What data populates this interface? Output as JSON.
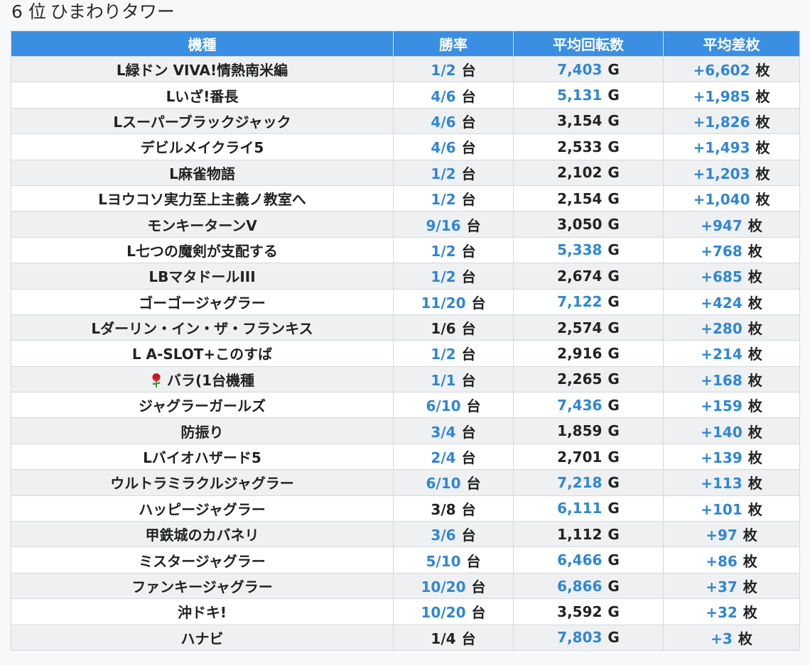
{
  "title": {
    "rank": "6 位",
    "store": "ひまわりタワー"
  },
  "columns": [
    "機種",
    "勝率",
    "平均回転数",
    "平均差枚"
  ],
  "units": {
    "win": "台",
    "spin": "G",
    "diff": "枚"
  },
  "colors": {
    "header": "#3b8fe2",
    "link": "#2f86d6",
    "text": "#222222",
    "stripe": "#eff0f1"
  },
  "rows": [
    {
      "name": "L緑ドン VIVA!情熱南米編",
      "win": "1/2",
      "win_link": true,
      "spin": "7,403",
      "spin_link": true,
      "diff": "+6,602",
      "diff_link": true
    },
    {
      "name": "Lいざ!番長",
      "win": "4/6",
      "win_link": true,
      "spin": "5,131",
      "spin_link": true,
      "diff": "+1,985",
      "diff_link": true
    },
    {
      "name": "Lスーパーブラックジャック",
      "win": "4/6",
      "win_link": true,
      "spin": "3,154",
      "spin_link": false,
      "diff": "+1,826",
      "diff_link": true
    },
    {
      "name": "デビルメイクライ5",
      "win": "4/6",
      "win_link": true,
      "spin": "2,533",
      "spin_link": false,
      "diff": "+1,493",
      "diff_link": true
    },
    {
      "name": "L麻雀物語",
      "win": "1/2",
      "win_link": true,
      "spin": "2,102",
      "spin_link": false,
      "diff": "+1,203",
      "diff_link": true
    },
    {
      "name": "Lヨウコソ実力至上主義ノ教室へ",
      "win": "1/2",
      "win_link": true,
      "spin": "2,154",
      "spin_link": false,
      "diff": "+1,040",
      "diff_link": true
    },
    {
      "name": "モンキーターンV",
      "win": "9/16",
      "win_link": true,
      "spin": "3,050",
      "spin_link": false,
      "diff": "+947",
      "diff_link": true
    },
    {
      "name": "L七つの魔剣が支配する",
      "win": "1/2",
      "win_link": true,
      "spin": "5,338",
      "spin_link": true,
      "diff": "+768",
      "diff_link": true
    },
    {
      "name": "LBマタドールIII",
      "win": "1/2",
      "win_link": true,
      "spin": "2,674",
      "spin_link": false,
      "diff": "+685",
      "diff_link": true
    },
    {
      "name": "ゴーゴージャグラー",
      "win": "11/20",
      "win_link": true,
      "spin": "7,122",
      "spin_link": true,
      "diff": "+424",
      "diff_link": true
    },
    {
      "name": "Lダーリン・イン・ザ・フランキス",
      "win": "1/6",
      "win_link": false,
      "spin": "2,574",
      "spin_link": false,
      "diff": "+280",
      "diff_link": true
    },
    {
      "name": "L A-SLOT+このすば",
      "win": "1/2",
      "win_link": true,
      "spin": "2,916",
      "spin_link": false,
      "diff": "+214",
      "diff_link": true
    },
    {
      "name": "バラ(1台機種",
      "icon": "rose-icon",
      "win": "1/1",
      "win_link": true,
      "spin": "2,265",
      "spin_link": false,
      "diff": "+168",
      "diff_link": true
    },
    {
      "name": "ジャグラーガールズ",
      "win": "6/10",
      "win_link": true,
      "spin": "7,436",
      "spin_link": true,
      "diff": "+159",
      "diff_link": true
    },
    {
      "name": "防振り",
      "win": "3/4",
      "win_link": true,
      "spin": "1,859",
      "spin_link": false,
      "diff": "+140",
      "diff_link": true
    },
    {
      "name": "Lバイオハザード5",
      "win": "2/4",
      "win_link": true,
      "spin": "2,701",
      "spin_link": false,
      "diff": "+139",
      "diff_link": true
    },
    {
      "name": "ウルトラミラクルジャグラー",
      "win": "6/10",
      "win_link": true,
      "spin": "7,218",
      "spin_link": true,
      "diff": "+113",
      "diff_link": true
    },
    {
      "name": "ハッピージャグラー",
      "win": "3/8",
      "win_link": false,
      "spin": "6,111",
      "spin_link": true,
      "diff": "+101",
      "diff_link": true
    },
    {
      "name": "甲鉄城のカバネリ",
      "win": "3/6",
      "win_link": true,
      "spin": "1,112",
      "spin_link": false,
      "diff": "+97",
      "diff_link": true
    },
    {
      "name": "ミスタージャグラー",
      "win": "5/10",
      "win_link": true,
      "spin": "6,466",
      "spin_link": true,
      "diff": "+86",
      "diff_link": true
    },
    {
      "name": "ファンキージャグラー",
      "win": "10/20",
      "win_link": true,
      "spin": "6,866",
      "spin_link": true,
      "diff": "+37",
      "diff_link": true
    },
    {
      "name": "沖ドキ!",
      "win": "10/20",
      "win_link": true,
      "spin": "3,592",
      "spin_link": false,
      "diff": "+32",
      "diff_link": true
    },
    {
      "name": "ハナビ",
      "win": "1/4",
      "win_link": false,
      "spin": "7,803",
      "spin_link": true,
      "diff": "+3",
      "diff_link": true
    }
  ]
}
